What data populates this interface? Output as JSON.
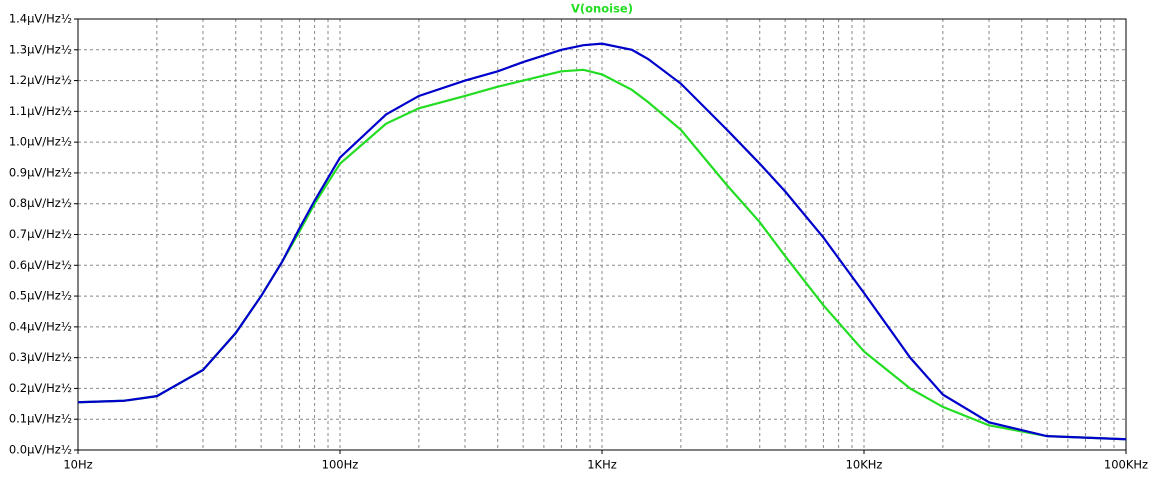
{
  "chart_data": {
    "type": "line",
    "log_x": true,
    "grid": true,
    "minor_grid": true,
    "x": [
      10,
      15,
      20,
      30,
      40,
      50,
      60,
      70,
      80,
      100,
      150,
      200,
      300,
      400,
      500,
      700,
      850,
      1000,
      1300,
      1500,
      2000,
      3000,
      4000,
      5000,
      7000,
      10000,
      15000,
      20000,
      30000,
      50000,
      100000
    ],
    "series": [
      {
        "name": "V(onoise)",
        "color": "#22dd22",
        "values": [
          0.155,
          0.16,
          0.175,
          0.26,
          0.38,
          0.5,
          0.61,
          0.71,
          0.8,
          0.93,
          1.06,
          1.11,
          1.15,
          1.18,
          1.2,
          1.23,
          1.235,
          1.22,
          1.17,
          1.13,
          1.04,
          0.86,
          0.74,
          0.63,
          0.47,
          0.32,
          0.2,
          0.14,
          0.08,
          0.045,
          0.035
        ]
      },
      {
        "color": "#0000cc",
        "values": [
          0.155,
          0.16,
          0.175,
          0.26,
          0.38,
          0.5,
          0.61,
          0.72,
          0.81,
          0.95,
          1.09,
          1.15,
          1.2,
          1.23,
          1.26,
          1.3,
          1.315,
          1.32,
          1.3,
          1.27,
          1.19,
          1.04,
          0.93,
          0.84,
          0.69,
          0.51,
          0.3,
          0.18,
          0.09,
          0.045,
          0.035
        ]
      }
    ],
    "xlim": [
      10,
      100000
    ],
    "xticks": [
      {
        "value": 10,
        "label": "10Hz"
      },
      {
        "value": 100,
        "label": "100Hz"
      },
      {
        "value": 1000,
        "label": "1KHz"
      },
      {
        "value": 10000,
        "label": "10KHz"
      },
      {
        "value": 100000,
        "label": "100KHz"
      }
    ],
    "ylim": [
      0,
      1.4
    ],
    "yticks": [
      {
        "value": 0,
        "label": "0.0µV/Hz½"
      },
      {
        "value": 0.1,
        "label": "0.1µV/Hz½"
      },
      {
        "value": 0.2,
        "label": "0.2µV/Hz½"
      },
      {
        "value": 0.3,
        "label": "0.3µV/Hz½"
      },
      {
        "value": 0.4,
        "label": "0.4µV/Hz½"
      },
      {
        "value": 0.5,
        "label": "0.5µV/Hz½"
      },
      {
        "value": 0.6,
        "label": "0.6µV/Hz½"
      },
      {
        "value": 0.7,
        "label": "0.7µV/Hz½"
      },
      {
        "value": 0.8,
        "label": "0.8µV/Hz½"
      },
      {
        "value": 0.9,
        "label": "0.9µV/Hz½"
      },
      {
        "value": 1.0,
        "label": "1.0µV/Hz½"
      },
      {
        "value": 1.1,
        "label": "1.1µV/Hz½"
      },
      {
        "value": 1.2,
        "label": "1.2µV/Hz½"
      },
      {
        "value": 1.3,
        "label": "1.3µV/Hz½"
      },
      {
        "value": 1.4,
        "label": "1.4µV/Hz½"
      }
    ]
  }
}
